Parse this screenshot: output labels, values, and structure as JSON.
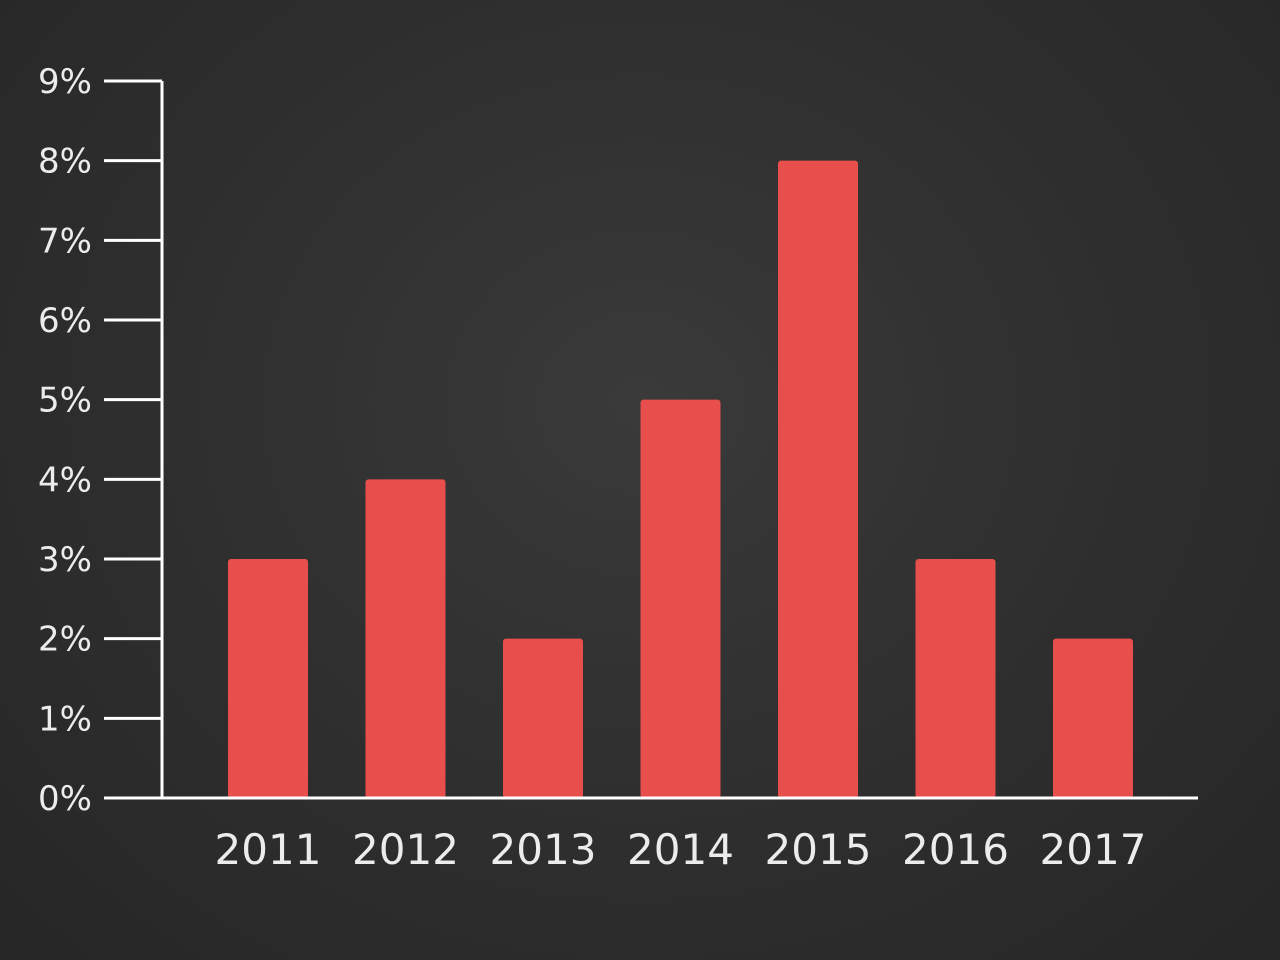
{
  "colors": {
    "background": "#2f2f2f",
    "bar": "#e84e4c",
    "axis": "#ffffff",
    "text": "#ececec"
  },
  "chart_data": {
    "type": "bar",
    "title": "",
    "xlabel": "",
    "ylabel": "",
    "categories": [
      "2011",
      "2012",
      "2013",
      "2014",
      "2015",
      "2016",
      "2017"
    ],
    "values": [
      3,
      4,
      2,
      5,
      8,
      3,
      2
    ],
    "ylim": [
      0,
      9
    ],
    "y_ticks": [
      "0%",
      "1%",
      "2%",
      "3%",
      "4%",
      "5%",
      "6%",
      "7%",
      "8%",
      "9%"
    ],
    "grid": false,
    "legend": "none"
  }
}
